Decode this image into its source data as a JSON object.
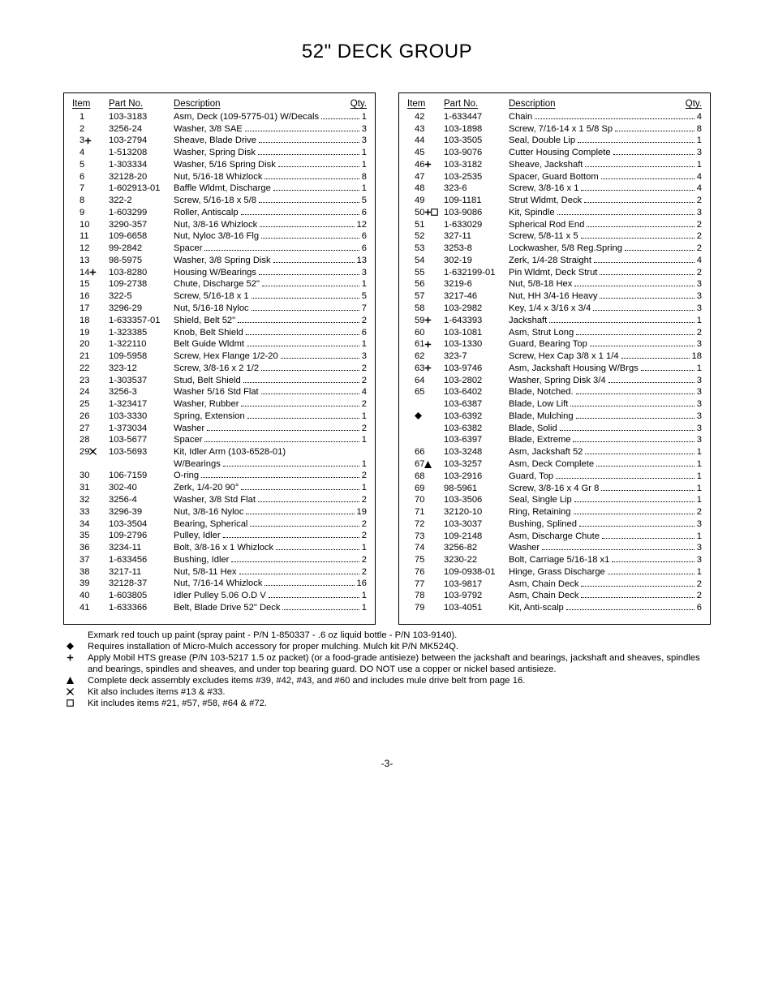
{
  "page": {
    "title": "52\" DECK GROUP",
    "number": "-3-",
    "text_color": "#000000",
    "background_color": "#ffffff",
    "border_color": "#000000",
    "font_size_title_pt": 18,
    "font_size_body_pt": 8.5,
    "layout": "two-column parts list"
  },
  "columns": {
    "header_item": "Item",
    "header_part": "Part No.",
    "header_desc": "Description",
    "header_qty": "Qty."
  },
  "symbols": {
    "plus": "plus-bold",
    "diamond": "diamond-filled",
    "x": "x-bold",
    "triangle": "triangle-filled",
    "box": "box-outline",
    "combo_plus_box": "plus-box"
  },
  "left_rows": [
    {
      "item": "1",
      "sym": "",
      "part": "103-3183",
      "desc": "Asm, Deck (109-5775-01) W/Decals",
      "qty": "1"
    },
    {
      "item": "2",
      "sym": "",
      "part": "3256-24",
      "desc": "Washer, 3/8 SAE",
      "qty": "3"
    },
    {
      "item": "3",
      "sym": "plus",
      "part": "103-2794",
      "desc": "Sheave, Blade Drive",
      "qty": "3"
    },
    {
      "item": "4",
      "sym": "",
      "part": "1-513208",
      "desc": "Washer, Spring Disk",
      "qty": "1"
    },
    {
      "item": "5",
      "sym": "",
      "part": "1-303334",
      "desc": "Washer, 5/16 Spring Disk",
      "qty": "1"
    },
    {
      "item": "6",
      "sym": "",
      "part": "32128-20",
      "desc": "Nut, 5/16-18 Whizlock",
      "qty": "8"
    },
    {
      "item": "7",
      "sym": "",
      "part": "1-602913-01",
      "desc": "Baffle Wldmt, Discharge",
      "qty": "1"
    },
    {
      "item": "8",
      "sym": "",
      "part": "322-2",
      "desc": "Screw, 5/16-18 x 5/8",
      "qty": "5"
    },
    {
      "item": "9",
      "sym": "",
      "part": "1-603299",
      "desc": "Roller, Antiscalp",
      "qty": "6"
    },
    {
      "item": "10",
      "sym": "",
      "part": "3290-357",
      "desc": "Nut, 3/8-16 Whizlock",
      "qty": "12"
    },
    {
      "item": "11",
      "sym": "",
      "part": "109-6658",
      "desc": "Nut, Nyloc 3/8-16 Flg",
      "qty": "6"
    },
    {
      "item": "12",
      "sym": "",
      "part": "99-2842",
      "desc": "Spacer",
      "qty": "6"
    },
    {
      "item": "13",
      "sym": "",
      "part": "98-5975",
      "desc": "Washer, 3/8 Spring Disk",
      "qty": "13"
    },
    {
      "item": "14",
      "sym": "plus",
      "part": "103-8280",
      "desc": "Housing W/Bearings",
      "qty": "3"
    },
    {
      "item": "15",
      "sym": "",
      "part": "109-2738",
      "desc": "Chute, Discharge 52\"",
      "qty": "1"
    },
    {
      "item": "16",
      "sym": "",
      "part": "322-5",
      "desc": "Screw, 5/16-18 x 1",
      "qty": "5"
    },
    {
      "item": "17",
      "sym": "",
      "part": "3296-29",
      "desc": "Nut, 5/16-18 Nyloc",
      "qty": "7"
    },
    {
      "item": "18",
      "sym": "",
      "part": "1-633357-01",
      "desc": "Shield, Belt 52\"",
      "qty": "2"
    },
    {
      "item": "19",
      "sym": "",
      "part": "1-323385",
      "desc": "Knob, Belt Shield",
      "qty": "6"
    },
    {
      "item": "20",
      "sym": "",
      "part": "1-322110",
      "desc": "Belt Guide Wldmt",
      "qty": "1"
    },
    {
      "item": "21",
      "sym": "",
      "part": "109-5958",
      "desc": "Screw, Hex Flange 1/2-20",
      "qty": "3"
    },
    {
      "item": "22",
      "sym": "",
      "part": "323-12",
      "desc": "Screw, 3/8-16 x 2 1/2",
      "qty": "2"
    },
    {
      "item": "23",
      "sym": "",
      "part": "1-303537",
      "desc": "Stud, Belt Shield",
      "qty": "2"
    },
    {
      "item": "24",
      "sym": "",
      "part": "3256-3",
      "desc": "Washer 5/16 Std Flat",
      "qty": "4"
    },
    {
      "item": "25",
      "sym": "",
      "part": "1-323417",
      "desc": "Washer, Rubber",
      "qty": "2"
    },
    {
      "item": "26",
      "sym": "",
      "part": "103-3330",
      "desc": "Spring, Extension",
      "qty": "1"
    },
    {
      "item": "27",
      "sym": "",
      "part": "1-373034",
      "desc": "Washer",
      "qty": "2"
    },
    {
      "item": "28",
      "sym": "",
      "part": "103-5677",
      "desc": "Spacer",
      "qty": "1"
    },
    {
      "item": "29",
      "sym": "x",
      "part": "103-5693",
      "desc": "Kit, Idler Arm (103-6528-01)",
      "qty": ""
    },
    {
      "item": "",
      "sym": "",
      "part": "",
      "desc": "W/Bearings",
      "qty": "1"
    },
    {
      "item": "30",
      "sym": "",
      "part": "106-7159",
      "desc": "O-ring",
      "qty": "2"
    },
    {
      "item": "31",
      "sym": "",
      "part": "302-40",
      "desc": "Zerk, 1/4-20 90°",
      "qty": "1"
    },
    {
      "item": "32",
      "sym": "",
      "part": "3256-4",
      "desc": "Washer, 3/8 Std Flat",
      "qty": "2"
    },
    {
      "item": "33",
      "sym": "",
      "part": "3296-39",
      "desc": "Nut, 3/8-16 Nyloc",
      "qty": "19"
    },
    {
      "item": "34",
      "sym": "",
      "part": "103-3504",
      "desc": "Bearing, Spherical",
      "qty": "2"
    },
    {
      "item": "35",
      "sym": "",
      "part": "109-2796",
      "desc": "Pulley, Idler",
      "qty": "2"
    },
    {
      "item": "36",
      "sym": "",
      "part": "3234-11",
      "desc": "Bolt, 3/8-16 x 1 Whizlock",
      "qty": "1"
    },
    {
      "item": "37",
      "sym": "",
      "part": "1-633456",
      "desc": "Bushing, Idler",
      "qty": "2"
    },
    {
      "item": "38",
      "sym": "",
      "part": "3217-11",
      "desc": "Nut, 5/8-11 Hex",
      "qty": "2"
    },
    {
      "item": "39",
      "sym": "",
      "part": "32128-37",
      "desc": "Nut, 7/16-14 Whizlock",
      "qty": "16"
    },
    {
      "item": "40",
      "sym": "",
      "part": "1-603805",
      "desc": "Idler Pulley 5.06 O.D V",
      "qty": "1"
    },
    {
      "item": "41",
      "sym": "",
      "part": "1-633366",
      "desc": "Belt, Blade Drive 52\" Deck",
      "qty": "1"
    }
  ],
  "right_rows": [
    {
      "item": "42",
      "sym": "",
      "part": "1-633447",
      "desc": "Chain",
      "qty": "4"
    },
    {
      "item": "43",
      "sym": "",
      "part": "103-1898",
      "desc": "Screw, 7/16-14 x 1 5/8 Sp",
      "qty": "8"
    },
    {
      "item": "44",
      "sym": "",
      "part": "103-3505",
      "desc": "Seal, Double Lip",
      "qty": "1"
    },
    {
      "item": "45",
      "sym": "",
      "part": "103-9076",
      "desc": "Cutter Housing Complete",
      "qty": "3"
    },
    {
      "item": "46",
      "sym": "plus",
      "part": "103-3182",
      "desc": "Sheave, Jackshaft",
      "qty": "1"
    },
    {
      "item": "47",
      "sym": "",
      "part": "103-2535",
      "desc": "Spacer, Guard Bottom",
      "qty": "4"
    },
    {
      "item": "48",
      "sym": "",
      "part": "323-6",
      "desc": "Screw, 3/8-16 x 1",
      "qty": "4"
    },
    {
      "item": "49",
      "sym": "",
      "part": "109-1181",
      "desc": "Strut Wldmt, Deck",
      "qty": "2"
    },
    {
      "item": "50",
      "sym": "plusbox",
      "part": "103-9086",
      "desc": "Kit, Spindle",
      "qty": "3"
    },
    {
      "item": "51",
      "sym": "",
      "part": "1-633029",
      "desc": "Spherical Rod End",
      "qty": "2"
    },
    {
      "item": "52",
      "sym": "",
      "part": "327-11",
      "desc": "Screw, 5/8-11 x 5",
      "qty": "2"
    },
    {
      "item": "53",
      "sym": "",
      "part": "3253-8",
      "desc": "Lockwasher, 5/8 Reg.Spring",
      "qty": "2"
    },
    {
      "item": "54",
      "sym": "",
      "part": "302-19",
      "desc": "Zerk, 1/4-28 Straight",
      "qty": "4"
    },
    {
      "item": "55",
      "sym": "",
      "part": "1-632199-01",
      "desc": "Pin Wldmt, Deck Strut",
      "qty": "2"
    },
    {
      "item": "56",
      "sym": "",
      "part": "3219-6",
      "desc": "Nut, 5/8-18 Hex",
      "qty": "3"
    },
    {
      "item": "57",
      "sym": "",
      "part": "3217-46",
      "desc": "Nut, HH 3/4-16 Heavy",
      "qty": "3"
    },
    {
      "item": "58",
      "sym": "",
      "part": "103-2982",
      "desc": "Key, 1/4 x 3/16 x 3/4",
      "qty": "3"
    },
    {
      "item": "59",
      "sym": "plus",
      "part": "1-643393",
      "desc": "Jackshaft",
      "qty": "1"
    },
    {
      "item": "60",
      "sym": "",
      "part": "103-1081",
      "desc": "Asm, Strut Long",
      "qty": "2"
    },
    {
      "item": "61",
      "sym": "plus",
      "part": "103-1330",
      "desc": "Guard, Bearing Top",
      "qty": "3"
    },
    {
      "item": "62",
      "sym": "",
      "part": "323-7",
      "desc": "Screw, Hex Cap 3/8 x 1 1/4",
      "qty": "18"
    },
    {
      "item": "63",
      "sym": "plus",
      "part": "103-9746",
      "desc": "Asm, Jackshaft Housing W/Brgs",
      "qty": "1"
    },
    {
      "item": "64",
      "sym": "",
      "part": "103-2802",
      "desc": "Washer, Spring Disk 3/4",
      "qty": "3"
    },
    {
      "item": "65",
      "sym": "",
      "part": "103-6402",
      "desc": "Blade, Notched.",
      "qty": "3"
    },
    {
      "item": "",
      "sym": "",
      "part": "103-6387",
      "desc": "Blade, Low Lift",
      "qty": "3"
    },
    {
      "item": "",
      "sym": "diamond",
      "part": "103-6392",
      "desc": "Blade, Mulching",
      "qty": "3"
    },
    {
      "item": "",
      "sym": "",
      "part": "103-6382",
      "desc": "Blade, Solid",
      "qty": "3"
    },
    {
      "item": "",
      "sym": "",
      "part": "103-6397",
      "desc": "Blade, Extreme",
      "qty": "3"
    },
    {
      "item": "66",
      "sym": "",
      "part": "103-3248",
      "desc": "Asm, Jackshaft 52",
      "qty": "1"
    },
    {
      "item": "67",
      "sym": "triangle",
      "part": "103-3257",
      "desc": "Asm, Deck Complete",
      "qty": "1"
    },
    {
      "item": "68",
      "sym": "",
      "part": "103-2916",
      "desc": "Guard, Top",
      "qty": "1"
    },
    {
      "item": "69",
      "sym": "",
      "part": "98-5961",
      "desc": "Screw, 3/8-16 x 4 Gr 8",
      "qty": "1"
    },
    {
      "item": "70",
      "sym": "",
      "part": "103-3506",
      "desc": "Seal, Single Lip",
      "qty": "1"
    },
    {
      "item": "71",
      "sym": "",
      "part": "32120-10",
      "desc": "Ring, Retaining",
      "qty": "2"
    },
    {
      "item": "72",
      "sym": "",
      "part": "103-3037",
      "desc": "Bushing, Splined",
      "qty": "3"
    },
    {
      "item": "73",
      "sym": "",
      "part": "109-2148",
      "desc": "Asm, Discharge Chute",
      "qty": "1"
    },
    {
      "item": "74",
      "sym": "",
      "part": "3256-82",
      "desc": "Washer",
      "qty": "3"
    },
    {
      "item": "75",
      "sym": "",
      "part": "3230-22",
      "desc": "Bolt, Carriage 5/16-18 x1",
      "qty": "3"
    },
    {
      "item": "76",
      "sym": "",
      "part": "109-0938-01",
      "desc": "Hinge, Grass Discharge",
      "qty": "1"
    },
    {
      "item": "77",
      "sym": "",
      "part": "103-9817",
      "desc": "Asm, Chain Deck",
      "qty": "2"
    },
    {
      "item": "78",
      "sym": "",
      "part": "103-9792",
      "desc": "Asm, Chain Deck",
      "qty": "2"
    },
    {
      "item": "79",
      "sym": "",
      "part": "103-4051",
      "desc": "Kit, Anti-scalp",
      "qty": "6"
    }
  ],
  "notes": [
    {
      "sym": "",
      "text": "Exmark red touch up paint (spray paint - P/N 1-850337 - .6 oz liquid bottle - P/N 103-9140)."
    },
    {
      "sym": "diamond",
      "text": "Requires installation of Micro-Mulch accessory for proper mulching.  Mulch kit P/N MK524Q."
    },
    {
      "sym": "plus",
      "text": "Apply Mobil HTS grease (P/N 103-5217 1.5 oz packet) (or a food-grade antisieze) between the jackshaft and bearings, jackshaft and sheaves, spindles and bearings, spindles and sheaves, and under top bearing guard. DO NOT use a copper or nickel based antisieze."
    },
    {
      "sym": "triangle",
      "text": "Complete deck assembly excludes items #39, #42, #43, and #60 and includes mule drive belt from page 16."
    },
    {
      "sym": "x",
      "text": "Kit also includes items #13 & #33."
    },
    {
      "sym": "box",
      "text": "Kit includes items #21, #57, #58, #64 & #72."
    }
  ]
}
